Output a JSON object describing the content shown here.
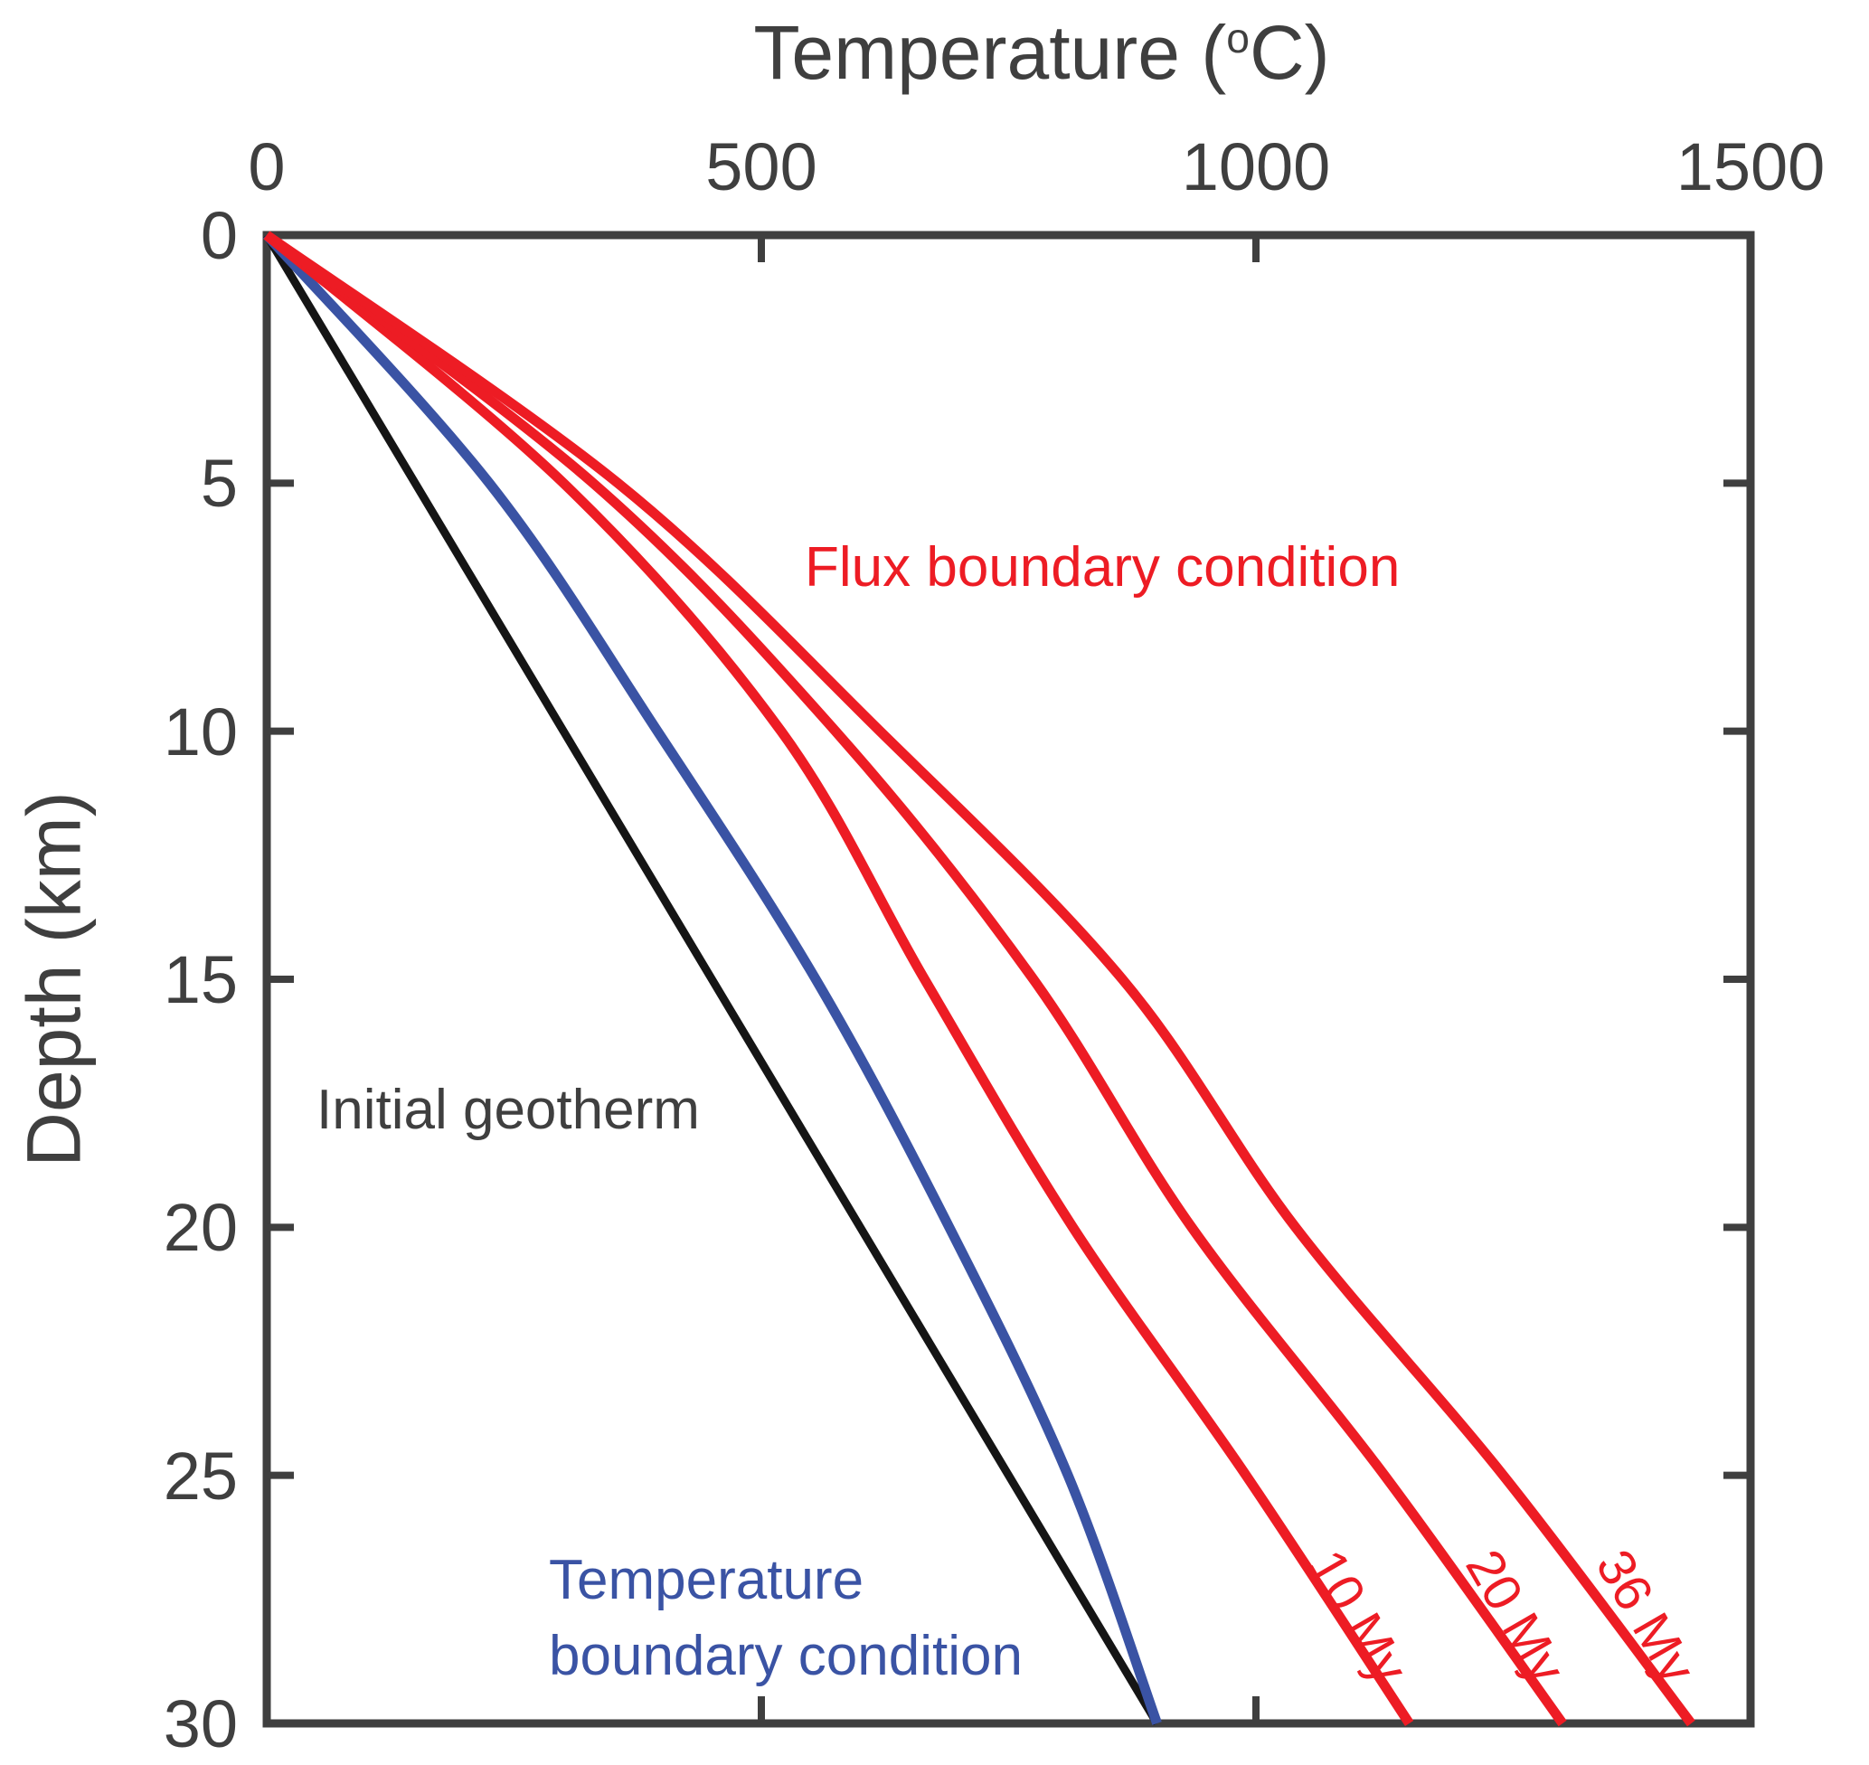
{
  "figure": {
    "background": "#ffffff",
    "frame_color": "#3f3f3f",
    "text_color": "#3f3f3f"
  },
  "chart_data": {
    "type": "line",
    "title": "",
    "x_axis": {
      "label": "Temperature (°C)",
      "label_prefix": "Temperature (",
      "label_sup": "o",
      "label_suffix": "C)",
      "position": "top",
      "range": [
        0,
        1500
      ],
      "ticks": [
        0,
        500,
        1000,
        1500
      ]
    },
    "y_axis": {
      "label": "Depth (km)",
      "direction": "down",
      "range": [
        0,
        30
      ],
      "ticks": [
        0,
        5,
        10,
        15,
        20,
        25,
        30
      ]
    },
    "grid": false,
    "legend": "none",
    "colors": {
      "red": "#ed1c24",
      "blue": "#3a53a4",
      "black": "#151515",
      "axis": "#3f3f3f"
    },
    "series": [
      {
        "name": "Initial geotherm",
        "color": "#151515",
        "width": 9,
        "points": [
          [
            0,
            0
          ],
          [
            150,
            5
          ],
          [
            300,
            10
          ],
          [
            450,
            15
          ],
          [
            600,
            20
          ],
          [
            750,
            25
          ],
          [
            900,
            30
          ]
        ]
      },
      {
        "name": "Temperature boundary condition",
        "color": "#3a53a4",
        "width": 11,
        "points": [
          [
            0,
            0
          ],
          [
            225,
            5
          ],
          [
            395,
            10
          ],
          [
            555,
            15
          ],
          [
            690,
            20
          ],
          [
            810,
            25
          ],
          [
            900,
            30
          ]
        ]
      },
      {
        "name": "Flux boundary condition 10 My",
        "label": "10 My",
        "color": "#ed1c24",
        "width": 11,
        "points": [
          [
            0,
            0
          ],
          [
            300,
            5
          ],
          [
            520,
            10
          ],
          [
            665,
            15
          ],
          [
            815,
            20
          ],
          [
            990,
            25
          ],
          [
            1155,
            30
          ]
        ]
      },
      {
        "name": "Flux boundary condition 20 My",
        "label": "20 My",
        "color": "#ed1c24",
        "width": 11,
        "points": [
          [
            0,
            0
          ],
          [
            330,
            5
          ],
          [
            575,
            10
          ],
          [
            775,
            15
          ],
          [
            935,
            20
          ],
          [
            1130,
            25
          ],
          [
            1310,
            30
          ]
        ]
      },
      {
        "name": "Flux boundary condition 36 My",
        "label": "36 My",
        "color": "#ed1c24",
        "width": 11,
        "points": [
          [
            0,
            0
          ],
          [
            355,
            5
          ],
          [
            620,
            10
          ],
          [
            865,
            15
          ],
          [
            1040,
            20
          ],
          [
            1250,
            25
          ],
          [
            1440,
            30
          ]
        ]
      }
    ],
    "annotations": {
      "flux": {
        "text": "Flux boundary condition",
        "color": "#ed1c24"
      },
      "initial": {
        "text": "Initial geotherm",
        "color": "#3f3f3f"
      },
      "temperature_bc": {
        "line1": "Temperature",
        "line2": "boundary condition",
        "color": "#3a53a4"
      }
    }
  }
}
